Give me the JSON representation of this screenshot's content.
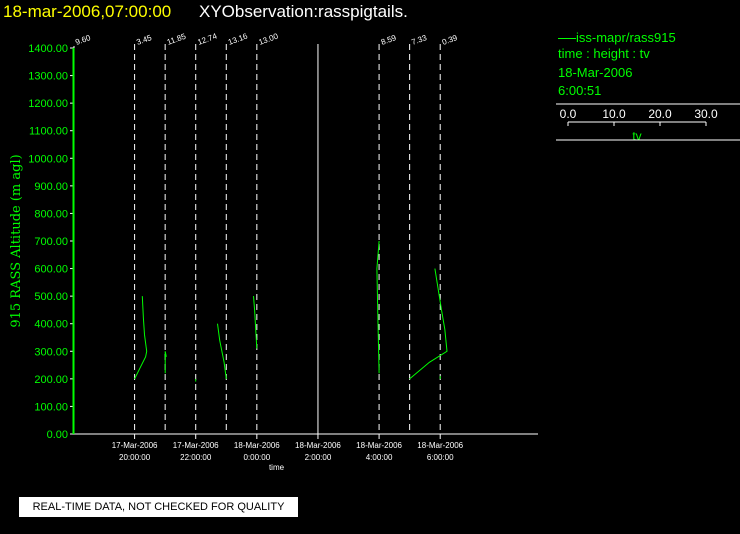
{
  "header": {
    "datetime": "18-mar-2006,07:00:00",
    "observation": "XYObservation:rasspigtails."
  },
  "legend": {
    "series_label": "iss-mapr/rass915",
    "axes_desc": "time : height : tv",
    "date": "18-Mar-2006",
    "time": "6:00:51",
    "scale_ticks": [
      "0.0",
      "10.0",
      "20.0",
      "30.0"
    ],
    "scale_label": "tv"
  },
  "notice": "REAL-TIME DATA, NOT CHECKED FOR QUALITY",
  "colors": {
    "data": "#00ff00",
    "axis": "#ffffff",
    "title_date": "#ffff00",
    "background": "#000000"
  },
  "chart_data": {
    "type": "line",
    "ylabel": "915 RASS Altitude (m agl)",
    "xlabel": "time",
    "ylim": [
      0,
      1400
    ],
    "y_ticks": [
      "0.00",
      "100.00",
      "200.00",
      "300.00",
      "400.00",
      "500.00",
      "600.00",
      "700.00",
      "800.00",
      "900.00",
      "1000.00",
      "1100.00",
      "1200.00",
      "1300.00",
      "1400.00"
    ],
    "x_ticks": [
      {
        "t": 20,
        "date": "17-Mar-2006",
        "time": "20:00:00"
      },
      {
        "t": 22,
        "date": "17-Mar-2006",
        "time": "22:00:00"
      },
      {
        "t": 24,
        "date": "18-Mar-2006",
        "time": "0:00:00"
      },
      {
        "t": 26,
        "date": "18-Mar-2006",
        "time": "2:00:00"
      },
      {
        "t": 28,
        "date": "18-Mar-2006",
        "time": "4:00:00"
      },
      {
        "t": 30,
        "date": "18-Mar-2006",
        "time": "6:00:00"
      }
    ],
    "xrange_hours": [
      18.05,
      33.2
    ],
    "grid": false,
    "profiles": [
      {
        "t": 18.0,
        "label": "9.60",
        "points": [
          [
            0,
            0
          ],
          [
            0,
            1400
          ]
        ]
      },
      {
        "t": 20.0,
        "label": "3.45",
        "points": [
          [
            0,
            200
          ],
          [
            5,
            240
          ],
          [
            10,
            280
          ],
          [
            11,
            300
          ],
          [
            9,
            360
          ],
          [
            8,
            420
          ],
          [
            7,
            500
          ]
        ]
      },
      {
        "t": 22.0,
        "label": "11.85",
        "points": [
          [
            0,
            220
          ],
          [
            0,
            300
          ],
          [
            1,
            280
          ]
        ]
      },
      {
        "t": 22.0,
        "label": "12.74",
        "points": [
          [
            0,
            190
          ],
          [
            0,
            200
          ]
        ]
      },
      {
        "t": 23.0,
        "label": "13.16",
        "points": [
          [
            0,
            200
          ],
          [
            -2,
            260
          ],
          [
            -6,
            340
          ],
          [
            -8,
            400
          ]
        ]
      },
      {
        "t": 24.0,
        "label": "13.00",
        "points": [
          [
            0,
            310
          ],
          [
            -1,
            380
          ],
          [
            -2,
            450
          ],
          [
            -3,
            500
          ]
        ]
      },
      {
        "t": 29.0,
        "label": "8.59",
        "points": [
          [
            0,
            220
          ],
          [
            -1,
            400
          ],
          [
            -2,
            600
          ],
          [
            -1,
            650
          ],
          [
            0,
            700
          ]
        ]
      },
      {
        "t": 30.0,
        "label": "7.33",
        "points": [
          [
            0,
            200
          ],
          [
            18,
            260
          ],
          [
            34,
            300
          ],
          [
            32,
            380
          ],
          [
            29,
            450
          ],
          [
            25,
            550
          ],
          [
            23,
            600
          ]
        ]
      },
      {
        "t": 30.0,
        "label": "0.39",
        "points": [
          [
            0,
            200
          ],
          [
            0,
            210
          ]
        ]
      }
    ],
    "dashed_times": [
      20.0,
      21.0,
      22.0,
      23.0,
      24.0,
      28.0,
      29.0,
      30.0
    ],
    "solid_times": [
      26.0
    ]
  }
}
